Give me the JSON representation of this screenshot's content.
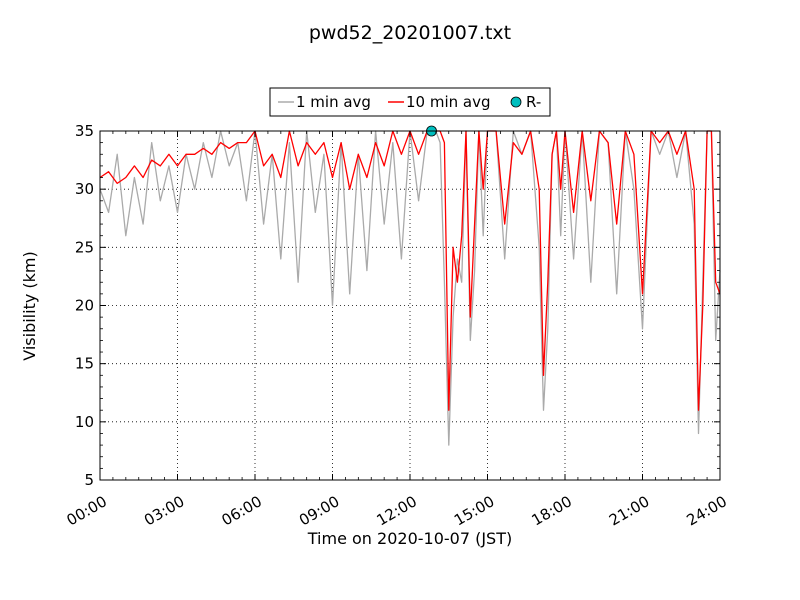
{
  "chart_data": {
    "type": "line",
    "title": "pwd52_20201007.txt",
    "xlabel": "Time on 2020-10-07 (JST)",
    "ylabel": "Visibility (km)",
    "xlim": [
      "00:00",
      "24:00"
    ],
    "ylim": [
      5,
      35
    ],
    "grid": true,
    "legend_position": "top-center",
    "x_ticks": [
      "00:00",
      "03:00",
      "06:00",
      "09:00",
      "12:00",
      "15:00",
      "18:00",
      "21:00",
      "24:00"
    ],
    "y_ticks": [
      "5",
      "10",
      "15",
      "20",
      "25",
      "30",
      "35"
    ],
    "legend": [
      {
        "label": "1 min avg",
        "marker": "line",
        "color": "#aaaaaa"
      },
      {
        "label": "10 min avg",
        "marker": "line",
        "color": "#ff0000"
      },
      {
        "label": "R-",
        "marker": "circle",
        "color": "#00bfbf"
      }
    ],
    "series": [
      {
        "name": "1 min avg",
        "color": "#aaaaaa",
        "x": [
          "00:00",
          "00:20",
          "00:40",
          "01:00",
          "01:20",
          "01:40",
          "02:00",
          "02:20",
          "02:40",
          "03:00",
          "03:20",
          "03:40",
          "04:00",
          "04:20",
          "04:40",
          "05:00",
          "05:20",
          "05:40",
          "06:00",
          "06:20",
          "06:40",
          "07:00",
          "07:20",
          "07:40",
          "08:00",
          "08:20",
          "08:40",
          "09:00",
          "09:20",
          "09:40",
          "10:00",
          "10:20",
          "10:40",
          "11:00",
          "11:20",
          "11:40",
          "12:00",
          "12:20",
          "12:40",
          "13:00",
          "13:10",
          "13:20",
          "13:30",
          "13:40",
          "13:50",
          "14:00",
          "14:10",
          "14:20",
          "14:30",
          "14:40",
          "14:50",
          "15:00",
          "15:20",
          "15:40",
          "16:00",
          "16:20",
          "16:40",
          "17:00",
          "17:10",
          "17:20",
          "17:30",
          "17:40",
          "17:50",
          "18:00",
          "18:20",
          "18:40",
          "19:00",
          "19:20",
          "19:40",
          "20:00",
          "20:20",
          "20:40",
          "21:00",
          "21:20",
          "21:40",
          "22:00",
          "22:20",
          "22:40",
          "23:00",
          "23:10",
          "23:20",
          "23:30",
          "23:40",
          "23:50",
          "24:00"
        ],
        "values": [
          30,
          28,
          33,
          26,
          31,
          27,
          34,
          29,
          32,
          28,
          33,
          30,
          34,
          31,
          35,
          32,
          34,
          29,
          35,
          27,
          33,
          24,
          34,
          22,
          35,
          28,
          33,
          20,
          34,
          21,
          33,
          23,
          35,
          27,
          34,
          24,
          35,
          29,
          35,
          35,
          34,
          22,
          8,
          19,
          24,
          22,
          35,
          17,
          23,
          35,
          26,
          35,
          35,
          24,
          35,
          33,
          35,
          25,
          11,
          18,
          33,
          35,
          26,
          35,
          24,
          35,
          22,
          35,
          34,
          21,
          35,
          30,
          18,
          35,
          33,
          35,
          31,
          35,
          27,
          9,
          22,
          35,
          35,
          17,
          23
        ]
      },
      {
        "name": "10 min avg",
        "color": "#ff0000",
        "x": [
          "00:00",
          "00:20",
          "00:40",
          "01:00",
          "01:20",
          "01:40",
          "02:00",
          "02:20",
          "02:40",
          "03:00",
          "03:20",
          "03:40",
          "04:00",
          "04:20",
          "04:40",
          "05:00",
          "05:20",
          "05:40",
          "06:00",
          "06:20",
          "06:40",
          "07:00",
          "07:20",
          "07:40",
          "08:00",
          "08:20",
          "08:40",
          "09:00",
          "09:20",
          "09:40",
          "10:00",
          "10:20",
          "10:40",
          "11:00",
          "11:20",
          "11:40",
          "12:00",
          "12:20",
          "12:40",
          "13:00",
          "13:10",
          "13:20",
          "13:30",
          "13:40",
          "13:50",
          "14:00",
          "14:10",
          "14:20",
          "14:30",
          "14:40",
          "14:50",
          "15:00",
          "15:20",
          "15:40",
          "16:00",
          "16:20",
          "16:40",
          "17:00",
          "17:10",
          "17:20",
          "17:30",
          "17:40",
          "17:50",
          "18:00",
          "18:20",
          "18:40",
          "19:00",
          "19:20",
          "19:40",
          "20:00",
          "20:20",
          "20:40",
          "21:00",
          "21:20",
          "21:40",
          "22:00",
          "22:20",
          "22:40",
          "23:00",
          "23:10",
          "23:20",
          "23:30",
          "23:40",
          "23:50",
          "24:00"
        ],
        "values": [
          31,
          31.5,
          30.5,
          31,
          32,
          31,
          32.5,
          32,
          33,
          32,
          33,
          33,
          33.5,
          33,
          34,
          33.5,
          34,
          34,
          35,
          32,
          33,
          31,
          35,
          32,
          34,
          33,
          34,
          31,
          34,
          30,
          33,
          31,
          34,
          32,
          35,
          33,
          35,
          33,
          35,
          35,
          35,
          34,
          11,
          25,
          22,
          26,
          35,
          19,
          27,
          35,
          30,
          35,
          35,
          27,
          34,
          33,
          35,
          30,
          14,
          22,
          33,
          35,
          30,
          35,
          28,
          35,
          29,
          35,
          34,
          27,
          35,
          33,
          21,
          35,
          34,
          35,
          33,
          35,
          30,
          11,
          20,
          35,
          35,
          22,
          21
        ]
      },
      {
        "name": "R-",
        "color": "#00bfbf",
        "marker": "circle",
        "x": [
          "12:50"
        ],
        "values": [
          35
        ]
      }
    ]
  }
}
